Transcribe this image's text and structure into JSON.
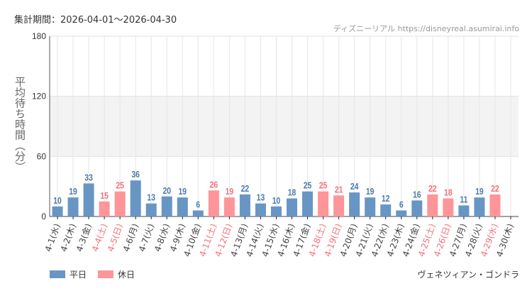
{
  "header": {
    "period": "集計期間：2026-04-01〜2026-04-30",
    "site": "ディズニーリアル https://disneyreal.asumirai.info"
  },
  "legend": {
    "weekday": "平日",
    "holiday": "休日"
  },
  "attraction": "ヴェネツィアン・ゴンドラ",
  "chart_data": {
    "type": "bar",
    "ylabel": "平均待ち時間（分）",
    "ylim": [
      0,
      180
    ],
    "yticks": [
      0,
      60,
      120,
      180
    ],
    "grid": true,
    "legend_placement": "bottom-left",
    "colors": {
      "weekday": "#6796c4",
      "holiday": "#fe9599",
      "weekday_label": "#4a7ab0",
      "holiday_label": "#f5707a",
      "axis_label": "#444"
    },
    "categories": [
      "4-1(水)",
      "4-2(木)",
      "4-3(金)",
      "4-4(土)",
      "4-5(日)",
      "4-6(月)",
      "4-7(火)",
      "4-8(水)",
      "4-9(木)",
      "4-10(金)",
      "4-11(土)",
      "4-12(日)",
      "4-13(月)",
      "4-14(火)",
      "4-15(水)",
      "4-16(木)",
      "4-17(金)",
      "4-18(土)",
      "4-19(日)",
      "4-20(月)",
      "4-21(火)",
      "4-22(水)",
      "4-23(木)",
      "4-24(金)",
      "4-25(土)",
      "4-26(日)",
      "4-27(月)",
      "4-28(火)",
      "4-29(水)",
      "4-30(木)"
    ],
    "holiday": [
      false,
      false,
      false,
      true,
      true,
      false,
      false,
      false,
      false,
      false,
      true,
      true,
      false,
      false,
      false,
      false,
      false,
      true,
      true,
      false,
      false,
      false,
      false,
      false,
      true,
      true,
      false,
      false,
      true,
      false
    ],
    "values": [
      10,
      19,
      33,
      15,
      25,
      36,
      13,
      20,
      19,
      6,
      26,
      19,
      22,
      13,
      10,
      18,
      25,
      25,
      21,
      24,
      19,
      12,
      6,
      16,
      22,
      18,
      11,
      19,
      22,
      null
    ]
  }
}
